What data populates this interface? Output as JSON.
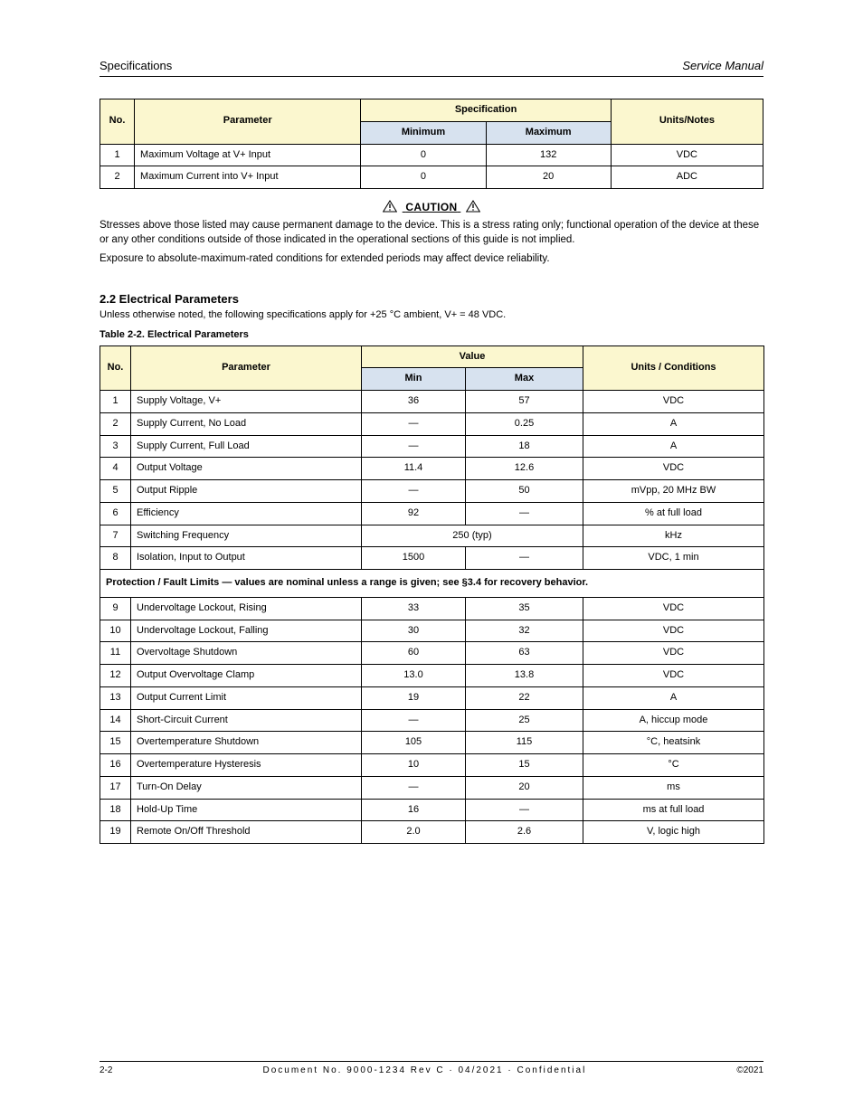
{
  "colors": {
    "header_yellow": "#fbf7cf",
    "header_blue": "#d7e2ef",
    "border": "#000000",
    "background": "#ffffff",
    "text": "#000000"
  },
  "runningHead": {
    "left": "Specifications",
    "right": "Service Manual"
  },
  "table1": {
    "header": {
      "no": "No.",
      "parameter": "Parameter",
      "minmax": "Specification",
      "min": "Minimum",
      "max": "Maximum",
      "units": "Units/Notes"
    },
    "rows": [
      {
        "no": "1",
        "parameter": "Maximum Voltage at V+ Input",
        "min": "0",
        "max": "132",
        "units": "VDC"
      },
      {
        "no": "2",
        "parameter": "Maximum Current into V+ Input",
        "min": "0",
        "max": "20",
        "units": "ADC"
      }
    ]
  },
  "caution": {
    "title": "CAUTION",
    "p1": "Stresses above those listed may cause permanent damage to the device. This is a stress rating only; functional operation of the device at these or any other conditions outside of those indicated in the operational sections of this guide is not implied.",
    "p2": "Exposure to absolute‑maximum‑rated conditions for extended periods may affect device reliability."
  },
  "section2": {
    "heading": "2.2 Electrical Parameters",
    "sub": "Unless otherwise noted, the following specifications apply for +25 °C ambient, V+ = 48 VDC.",
    "caption": "Table 2‑2. Electrical Parameters"
  },
  "table2": {
    "header": {
      "no": "No.",
      "parameter": "Parameter",
      "minmax": "Value",
      "min": "Min",
      "max": "Max",
      "units": "Units / Conditions"
    },
    "rowsA": [
      {
        "no": "1",
        "parameter": "Supply Voltage, V+",
        "min": "36",
        "max": "57",
        "units": "VDC"
      },
      {
        "no": "2",
        "parameter": "Supply Current, No Load",
        "min": "—",
        "max": "0.25",
        "units": "A"
      },
      {
        "no": "3",
        "parameter": "Supply Current, Full Load",
        "min": "—",
        "max": "18",
        "units": "A"
      },
      {
        "no": "4",
        "parameter": "Output Voltage",
        "min": "11.4",
        "max": "12.6",
        "units": "VDC"
      },
      {
        "no": "5",
        "parameter": "Output Ripple",
        "min": "—",
        "max": "50",
        "units": "mVpp, 20 MHz BW"
      },
      {
        "no": "6",
        "parameter": "Efficiency",
        "min": "92",
        "max": "—",
        "units": "% at full load"
      },
      {
        "no": "7",
        "parameter": "Switching Frequency",
        "min": "",
        "max": "250 (typ)",
        "units": "kHz",
        "span": true
      },
      {
        "no": "8",
        "parameter": "Isolation, Input to Output",
        "min": "1500",
        "max": "—",
        "units": "VDC, 1 min"
      }
    ],
    "subhead": {
      "label": "Protection / Fault Limits — values are nominal unless a range is given; see §3.4 for recovery behavior."
    },
    "rowsB": [
      {
        "no": "9",
        "parameter": "Undervoltage Lockout, Rising",
        "min": "33",
        "max": "35",
        "units": "VDC"
      },
      {
        "no": "10",
        "parameter": "Undervoltage Lockout, Falling",
        "min": "30",
        "max": "32",
        "units": "VDC"
      },
      {
        "no": "11",
        "parameter": "Overvoltage Shutdown",
        "min": "60",
        "max": "63",
        "units": "VDC"
      },
      {
        "no": "12",
        "parameter": "Output Overvoltage Clamp",
        "min": "13.0",
        "max": "13.8",
        "units": "VDC"
      },
      {
        "no": "13",
        "parameter": "Output Current Limit",
        "min": "19",
        "max": "22",
        "units": "A"
      },
      {
        "no": "14",
        "parameter": "Short‑Circuit Current",
        "min": "—",
        "max": "25",
        "units": "A, hiccup mode"
      },
      {
        "no": "15",
        "parameter": "Overtemperature Shutdown",
        "min": "105",
        "max": "115",
        "units": "°C, heatsink"
      },
      {
        "no": "16",
        "parameter": "Overtemperature Hysteresis",
        "min": "10",
        "max": "15",
        "units": "°C"
      },
      {
        "no": "17",
        "parameter": "Turn‑On Delay",
        "min": "—",
        "max": "20",
        "units": "ms"
      },
      {
        "no": "18",
        "parameter": "Hold‑Up Time",
        "min": "16",
        "max": "—",
        "units": "ms at full load"
      },
      {
        "no": "19",
        "parameter": "Remote On/Off Threshold",
        "min": "2.0",
        "max": "2.6",
        "units": "V, logic high"
      }
    ]
  },
  "footer": {
    "left": "2‑2",
    "centerTop": "Document No. 9000‑1234 Rev C  ·  04/2021  ·  Confidential",
    "right": "©2021"
  }
}
